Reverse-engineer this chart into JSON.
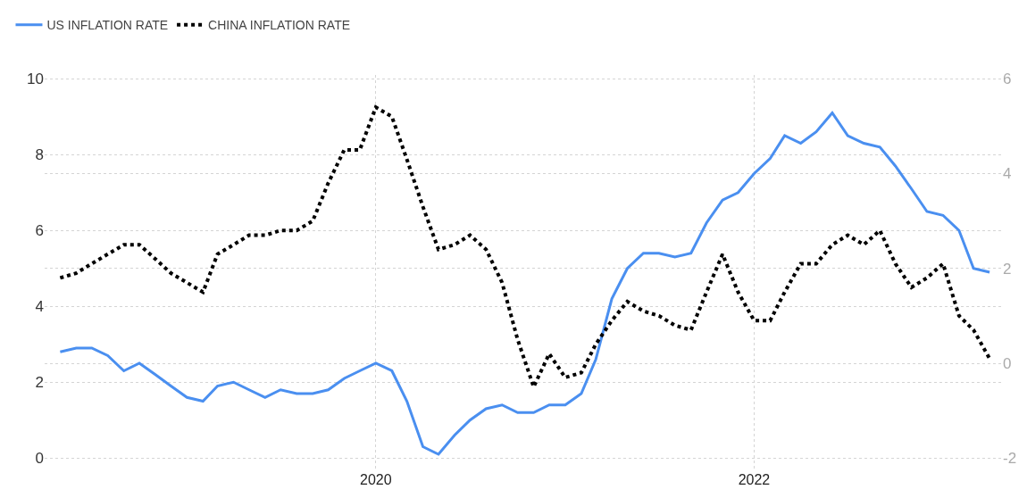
{
  "chart_data": {
    "type": "line",
    "legend": "top left",
    "grid": true,
    "marker": "none",
    "x": [
      "2018-05",
      "2018-06",
      "2018-07",
      "2018-08",
      "2018-09",
      "2018-10",
      "2018-11",
      "2018-12",
      "2019-01",
      "2019-02",
      "2019-03",
      "2019-04",
      "2019-05",
      "2019-06",
      "2019-07",
      "2019-08",
      "2019-09",
      "2019-10",
      "2019-11",
      "2019-12",
      "2020-01",
      "2020-02",
      "2020-03",
      "2020-04",
      "2020-05",
      "2020-06",
      "2020-07",
      "2020-08",
      "2020-09",
      "2020-10",
      "2020-11",
      "2020-12",
      "2021-01",
      "2021-02",
      "2021-03",
      "2021-04",
      "2021-05",
      "2021-06",
      "2021-07",
      "2021-08",
      "2021-09",
      "2021-10",
      "2021-11",
      "2021-12",
      "2022-01",
      "2022-02",
      "2022-03",
      "2022-04",
      "2022-05",
      "2022-06",
      "2022-07",
      "2022-08",
      "2022-09",
      "2022-10",
      "2022-11",
      "2022-12",
      "2023-01",
      "2023-02",
      "2023-03",
      "2023-04"
    ],
    "xlim": [
      "2018-04-01",
      "2023-04-25"
    ],
    "xticks": [
      {
        "value": "2020-01-01",
        "label": "2020"
      },
      {
        "value": "2022-01-01",
        "label": "2022"
      }
    ],
    "ylim": [
      -0.3,
      10.1
    ],
    "yticks": [
      0,
      2,
      4,
      6,
      8,
      10
    ],
    "y2lim": [
      -2.24,
      6.08
    ],
    "y2ticks": [
      -2,
      0,
      2,
      4,
      6
    ],
    "series": [
      {
        "name": "US INFLATION RATE",
        "color": "#4a8ff0",
        "line_style": "solid",
        "values": [
          2.8,
          2.9,
          2.9,
          2.7,
          2.3,
          2.5,
          2.2,
          1.9,
          1.6,
          1.5,
          1.9,
          2.0,
          1.8,
          1.6,
          1.8,
          1.7,
          1.7,
          1.8,
          2.1,
          2.3,
          2.5,
          2.3,
          1.5,
          0.3,
          0.1,
          0.6,
          1.0,
          1.3,
          1.4,
          1.2,
          1.2,
          1.4,
          1.4,
          1.7,
          2.6,
          4.2,
          5.0,
          5.4,
          5.4,
          5.3,
          5.4,
          6.2,
          6.8,
          7.0,
          7.5,
          7.9,
          8.5,
          8.3,
          8.6,
          9.1,
          8.5,
          8.3,
          8.2,
          7.7,
          7.1,
          6.5,
          6.4,
          6.0,
          5.0,
          4.9
        ]
      },
      {
        "name": "CHINA INFLATION RATE",
        "color": "#000000",
        "line_style": "dotted",
        "axis": "y2",
        "values": [
          1.8,
          1.9,
          2.1,
          2.3,
          2.5,
          2.5,
          2.2,
          1.9,
          1.7,
          1.5,
          2.3,
          2.5,
          2.7,
          2.7,
          2.8,
          2.8,
          3.0,
          3.8,
          4.5,
          4.5,
          5.4,
          5.2,
          4.3,
          3.3,
          2.4,
          2.5,
          2.7,
          2.4,
          1.7,
          0.5,
          -0.5,
          0.2,
          -0.3,
          -0.2,
          0.4,
          0.9,
          1.3,
          1.1,
          1.0,
          0.8,
          0.7,
          1.5,
          2.3,
          1.5,
          0.9,
          0.9,
          1.5,
          2.1,
          2.1,
          2.5,
          2.7,
          2.5,
          2.8,
          2.1,
          1.6,
          1.8,
          2.1,
          1.0,
          0.7,
          0.1
        ]
      }
    ]
  }
}
